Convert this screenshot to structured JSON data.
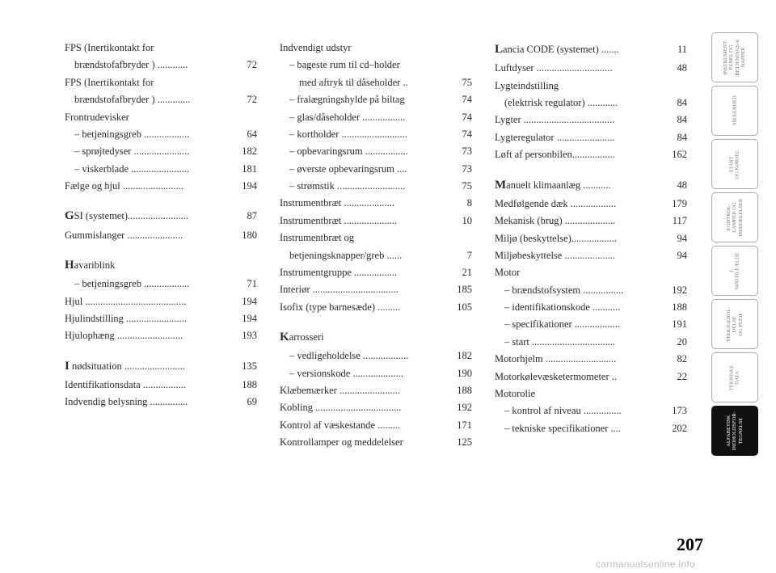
{
  "page_number": "207",
  "watermark": "carmanualsonline.info",
  "tabs": [
    {
      "label": "INSTRUMENT-\nPANEL OG\nBETJENINGS-K\nNAPPER",
      "active": false
    },
    {
      "label": "SIKKERHED",
      "active": false
    },
    {
      "label": "START\nOG KØRSEL",
      "active": false
    },
    {
      "label": "KONTROL-\nLAMPER OG\nMEDDELELSER",
      "active": false
    },
    {
      "label": "I\nNØDTILFÆLDE",
      "active": false
    },
    {
      "label": "VEDLIGEHOL-\nDELSE\nOG PLEJE",
      "active": false
    },
    {
      "label": "TEKNISKE\nDATA",
      "active": false
    },
    {
      "label": "ALFABETISK\nINDHOLDSFOR-\nTEGNELSE",
      "active": true
    }
  ],
  "col1": [
    {
      "t": "line2",
      "label1": "FPS (Inertikontakt for",
      "label2": "brændstofafbryder ) ............",
      "pg": "72"
    },
    {
      "t": "line2",
      "label1": "FPS (Inertikontakt for",
      "label2": "brændstofafbryder ) .............",
      "pg": "72"
    },
    {
      "t": "head",
      "label": "Frontrudevisker"
    },
    {
      "t": "sub",
      "label": "– betjeningsgreb ..................",
      "pg": "64"
    },
    {
      "t": "sub",
      "label": "– sprøjtedyser ......................",
      "pg": "182"
    },
    {
      "t": "sub",
      "label": "– viskerblade .......................",
      "pg": "181"
    },
    {
      "t": "line",
      "label": "Fælge og hjul ........................",
      "pg": "194"
    },
    {
      "t": "gap"
    },
    {
      "t": "line",
      "label": "G",
      "rest": "SI (systemet)........................",
      "pg": "87",
      "initial": true
    },
    {
      "t": "line",
      "label": "Gummislanger ......................",
      "pg": "180"
    },
    {
      "t": "gap"
    },
    {
      "t": "line",
      "label": "H",
      "rest": "avariblink",
      "initial": true
    },
    {
      "t": "sub",
      "label": "– betjeningsgreb ..................",
      "pg": "71"
    },
    {
      "t": "line",
      "label": "Hjul ........................................",
      "pg": "194"
    },
    {
      "t": "line",
      "label": "Hjulindstilling ........................",
      "pg": "194"
    },
    {
      "t": "line",
      "label": "Hjulophæng ..........................",
      "pg": "193"
    },
    {
      "t": "gap"
    },
    {
      "t": "line",
      "label": "I",
      "rest": " nødsituation ........................",
      "pg": "135",
      "initial": true
    },
    {
      "t": "line",
      "label": "Identifikationsdata .................",
      "pg": "188"
    },
    {
      "t": "line",
      "label": "Indvendig belysning ...............",
      "pg": "69"
    }
  ],
  "col2": [
    {
      "t": "head",
      "label": "Indvendigt udstyr"
    },
    {
      "t": "sub2line",
      "label1": "– bageste rum til cd–holder",
      "label2": "med aftryk til dåseholder ..",
      "pg": "75"
    },
    {
      "t": "sub",
      "label": "– fralægningshylde på biltag",
      "pg": "74"
    },
    {
      "t": "sub",
      "label": "– glas/dåseholder .................",
      "pg": "74"
    },
    {
      "t": "sub",
      "label": "– kortholder ..........................",
      "pg": "74"
    },
    {
      "t": "sub",
      "label": "– opbevaringsrum .................",
      "pg": "73"
    },
    {
      "t": "sub",
      "label": "– øverste opbevaringsrum ....",
      "pg": "73"
    },
    {
      "t": "sub",
      "label": "– strømstik ...........................",
      "pg": "75"
    },
    {
      "t": "line",
      "label": "Instrumentbræt ....................",
      "pg": "8"
    },
    {
      "t": "line",
      "label": "Instrumentbræt .....................",
      "pg": "10"
    },
    {
      "t": "line2",
      "label1": "Instrumentbræt og",
      "label2": "betjeningsknapper/greb ......",
      "pg": "7"
    },
    {
      "t": "line",
      "label": "Instrumentgruppe .................",
      "pg": "21"
    },
    {
      "t": "line",
      "label": "Interiør ..................................",
      "pg": "185"
    },
    {
      "t": "line",
      "label": "Isofix (type barnesæde) .........",
      "pg": "105"
    },
    {
      "t": "gap"
    },
    {
      "t": "line",
      "label": "K",
      "rest": "arrosseri",
      "initial": true
    },
    {
      "t": "sub",
      "label": "– vedligeholdelse ..................",
      "pg": "182"
    },
    {
      "t": "sub",
      "label": "– versionskode ....................",
      "pg": "190"
    },
    {
      "t": "line",
      "label": "Klæbemærker ........................",
      "pg": "188"
    },
    {
      "t": "line",
      "label": "Kobling ..................................",
      "pg": "192"
    },
    {
      "t": "line",
      "label": "Kontrol af væskestande .........",
      "pg": "171"
    },
    {
      "t": "line",
      "label": "Kontrollamper og meddelelser",
      "pg": "125"
    }
  ],
  "col3": [
    {
      "t": "line",
      "label": "L",
      "rest": "ancia CODE (systemet) .......",
      "pg": "11",
      "initial": true
    },
    {
      "t": "line",
      "label": "Luftdyser ..............................",
      "pg": "48"
    },
    {
      "t": "line2",
      "label1": "Lygteindstilling",
      "label2": "(elektrisk regulator) ............",
      "pg": "84"
    },
    {
      "t": "line",
      "label": "Lygter ....................................",
      "pg": "84"
    },
    {
      "t": "line",
      "label": "Lygteregulator .......................",
      "pg": "84"
    },
    {
      "t": "line",
      "label": "Løft af personbilen.................",
      "pg": "162"
    },
    {
      "t": "gap"
    },
    {
      "t": "line",
      "label": "M",
      "rest": "anuelt klimaanlæg ...........",
      "pg": "48",
      "initial": true
    },
    {
      "t": "line",
      "label": "Medfølgende dæk ..................",
      "pg": "179"
    },
    {
      "t": "line",
      "label": "Mekanisk (brug) ....................",
      "pg": "117"
    },
    {
      "t": "line",
      "label": "Miljø (beskyttelse)..................",
      "pg": "94"
    },
    {
      "t": "line",
      "label": "Miljøbeskyttelse ....................",
      "pg": "94"
    },
    {
      "t": "head",
      "label": "Motor"
    },
    {
      "t": "sub",
      "label": "– brændstofsystem ................",
      "pg": "192"
    },
    {
      "t": "sub",
      "label": "– identifikationskode ...........",
      "pg": "188"
    },
    {
      "t": "sub",
      "label": "– specifikationer ..................",
      "pg": "191"
    },
    {
      "t": "sub",
      "label": "– start .................................",
      "pg": "20"
    },
    {
      "t": "line",
      "label": "Motorhjelm ............................",
      "pg": "82"
    },
    {
      "t": "line",
      "label": "Motorkølevæsketermometer ..",
      "pg": "22"
    },
    {
      "t": "head",
      "label": "Motorolie"
    },
    {
      "t": "sub",
      "label": "– kontrol af niveau ...............",
      "pg": "173"
    },
    {
      "t": "sub",
      "label": "– tekniske specifikationer ....",
      "pg": "202"
    }
  ]
}
